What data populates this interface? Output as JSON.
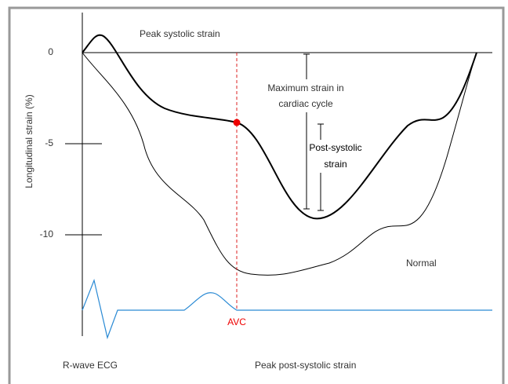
{
  "y_axis": {
    "label": "Longitudinal strain (%)",
    "ticks": [
      0,
      -5,
      -10
    ]
  },
  "annotations": {
    "peak_systolic": "Peak systolic strain",
    "max_strain": [
      "Maximum strain in",
      "cardiac cycle"
    ],
    "post_systolic": [
      "Post-systolic",
      "strain"
    ],
    "normal": "Normal",
    "avc": "AVC",
    "ecg": "R-wave ECG",
    "peak_post_systolic": "Peak post-systolic strain"
  }
}
